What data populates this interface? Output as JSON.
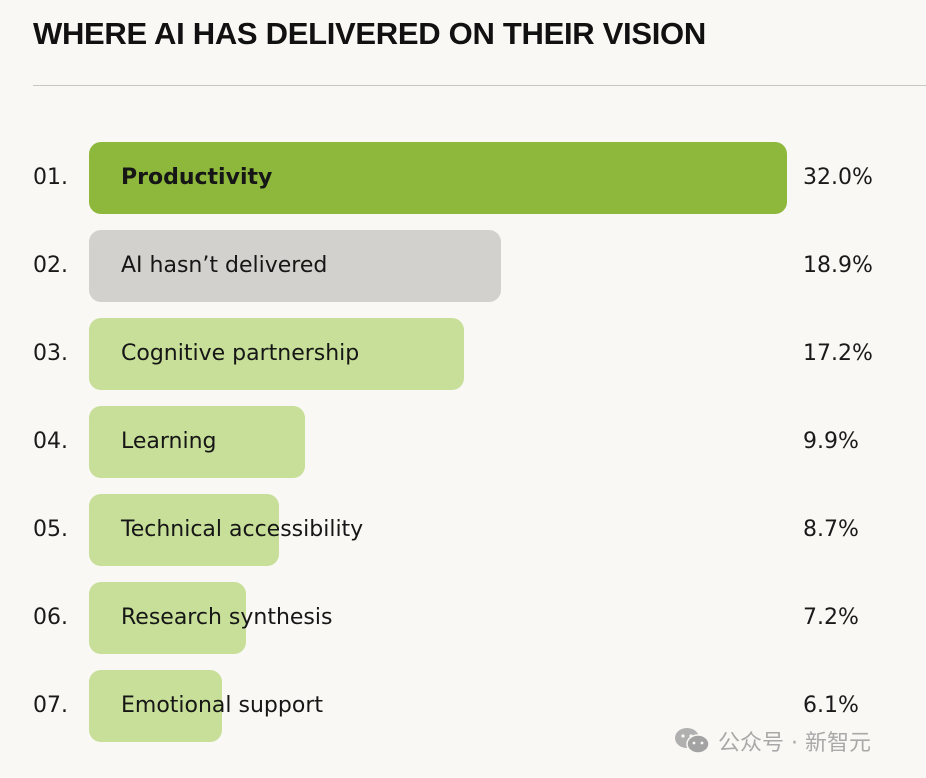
{
  "title": "WHERE AI HAS DELIVERED ON THEIR VISION",
  "watermark": {
    "icon": "wechat-icon",
    "text": "公众号 · 新智元"
  },
  "colors": {
    "highlight": "#8db83b",
    "neutral": "#d3d1cd",
    "default": "#c7df98",
    "background": "#f9f8f4"
  },
  "chart_data": {
    "type": "bar",
    "orientation": "horizontal",
    "title": "WHERE AI HAS DELIVERED ON THEIR VISION",
    "categories": [
      "Productivity",
      "AI hasn’t delivered",
      "Cognitive partnership",
      "Learning",
      "Technical accessibility",
      "Research synthesis",
      "Emotional support"
    ],
    "ranks": [
      "01.",
      "02.",
      "03.",
      "04.",
      "05.",
      "06.",
      "07."
    ],
    "values": [
      32.0,
      18.9,
      17.2,
      9.9,
      8.7,
      7.2,
      6.1
    ],
    "value_labels": [
      "32.0%",
      "18.9%",
      "17.2%",
      "9.9%",
      "8.7%",
      "7.2%",
      "6.1%"
    ],
    "bar_styles": [
      "highlight",
      "neutral",
      "default",
      "default",
      "default",
      "default",
      "default"
    ],
    "unit": "%",
    "grid": false
  }
}
